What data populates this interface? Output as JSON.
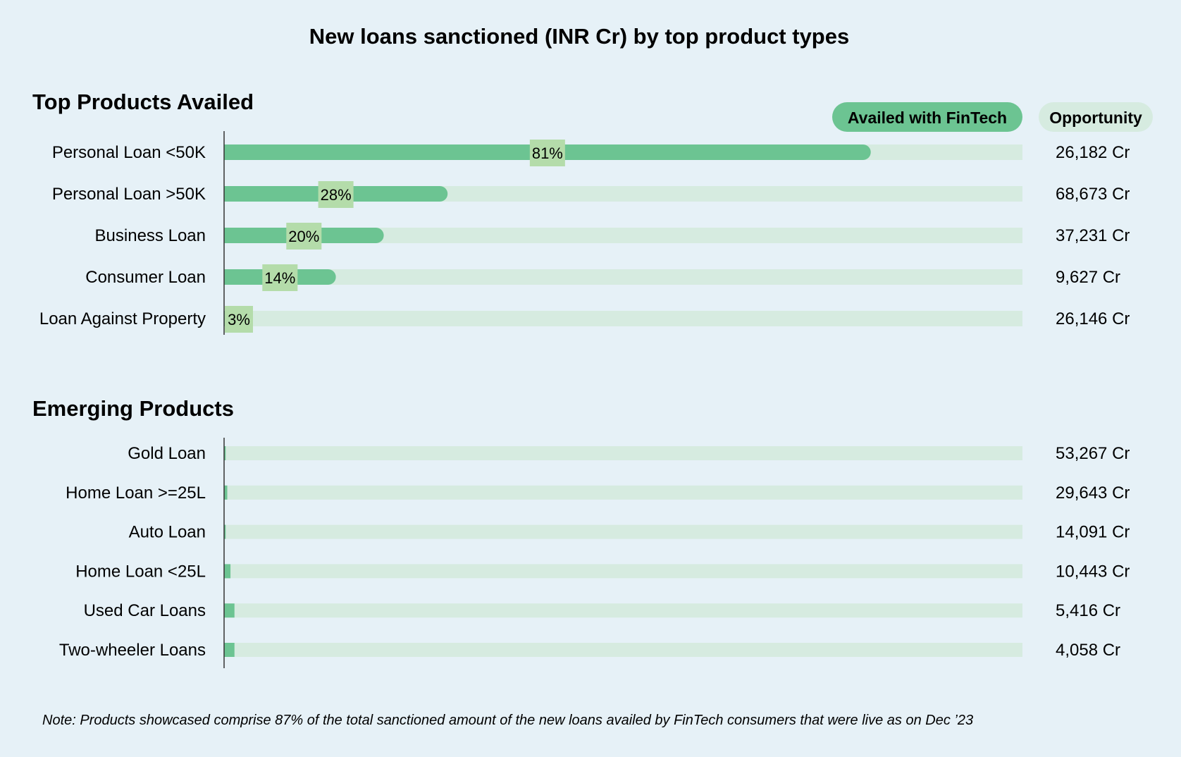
{
  "colors": {
    "background": "#e6f1f7",
    "fill": "#6cc492",
    "track": "#d6ebe0",
    "pct_box": "#b4dcaa",
    "opportunity_pill": "#d6ebe0",
    "axis": "#333333",
    "text": "#1f1f1f"
  },
  "chart_data": {
    "type": "bar",
    "orientation": "horizontal",
    "title": "New loans sanctioned (INR Cr) by top product types",
    "legend": [
      {
        "label": "Availed with FinTech",
        "color": "#6cc492"
      },
      {
        "label": "Opportunity",
        "color": "#d6ebe0"
      }
    ],
    "legend_position": "top-right",
    "xlim": [
      0,
      100
    ],
    "unit": "%",
    "sections": [
      {
        "title": "Top Products Availed",
        "categories": [
          "Personal Loan <50K",
          "Personal Loan >50K",
          "Business Loan",
          "Consumer Loan",
          "Loan Against Property"
        ],
        "values": [
          81,
          28,
          20,
          14,
          3
        ],
        "value_labels": [
          "81%",
          "28%",
          "20%",
          "14%",
          "3%"
        ],
        "opportunity": [
          "26,182 Cr",
          "68,673 Cr",
          "37,231 Cr",
          "9,627 Cr",
          "26,146 Cr"
        ]
      },
      {
        "title": "Emerging Products",
        "categories": [
          "Gold Loan",
          "Home Loan >=25L",
          "Auto Loan",
          "Home Loan <25L",
          "Used Car Loans",
          "Two-wheeler Loans"
        ],
        "values": [
          0.2,
          0.4,
          0.2,
          0.8,
          1.3,
          1.3
        ],
        "value_labels": [],
        "opportunity": [
          "53,267 Cr",
          "29,643 Cr",
          "14,091 Cr",
          "10,443 Cr",
          "5,416 Cr",
          "4,058 Cr"
        ]
      }
    ],
    "note": "Note: Products showcased comprise 87% of the total sanctioned amount of the new loans availed by FinTech consumers that were live as on Dec ’23"
  }
}
